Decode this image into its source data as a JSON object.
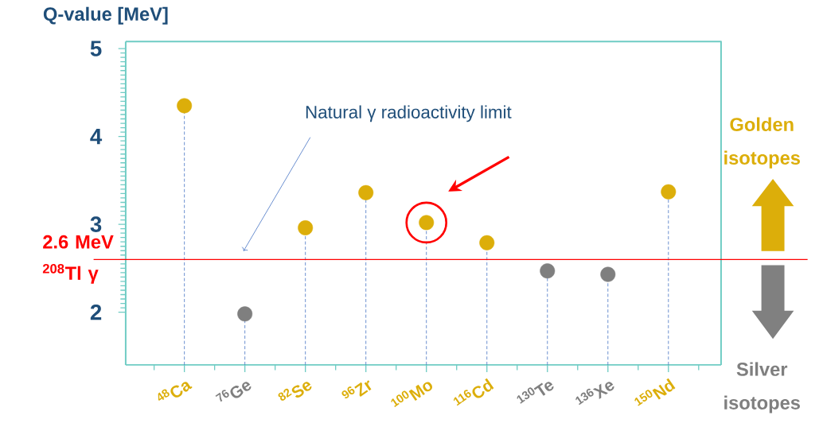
{
  "chart_data": {
    "type": "lollipop",
    "ylabel": "Q-value [MeV]",
    "categories": [
      "$^{48}$Ca",
      "$^{76}$Ge",
      "$^{82}$Se",
      "$^{96}$Zr",
      "$^{100}$Mo",
      "$^{116}$Cd",
      "$^{130}$Te",
      "$^{136}$Xe",
      "$^{150}$Nd"
    ],
    "values": [
      4.35,
      1.98,
      2.96,
      3.36,
      3.02,
      2.79,
      2.47,
      2.43,
      3.37
    ],
    "colors": [
      "#dcae0a",
      "#7f7f7f",
      "#dcae0a",
      "#dcae0a",
      "#dcae0a",
      "#dcae0a",
      "#7f7f7f",
      "#7f7f7f",
      "#dcae0a"
    ],
    "ylim": [
      1.4,
      5.08
    ],
    "yticks": [
      2,
      3,
      4,
      5
    ],
    "ref_lines": [
      {
        "axis": "y",
        "value": 2.6,
        "label": "2.6 MeV $^{208}$Tl γ",
        "color": "#ff0000"
      }
    ],
    "annotations": [
      "Natural γ radioactivity limit",
      "Golden isotopes",
      "Silver isotopes"
    ],
    "line_style": "dashed"
  }
}
